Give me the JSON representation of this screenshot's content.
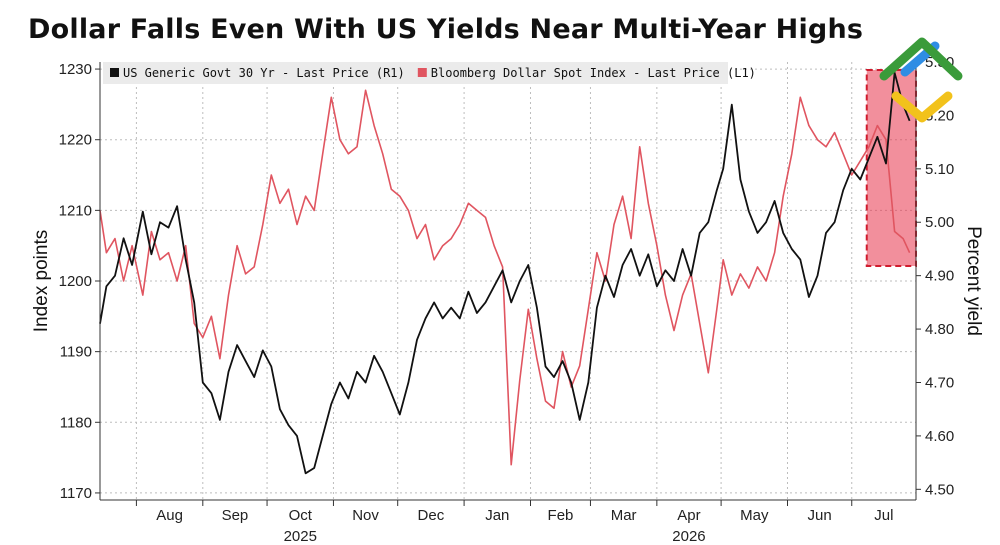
{
  "chart_data": {
    "type": "line",
    "title": "Dollar Falls Even With US Yields Near Multi-Year Highs",
    "left_axis": {
      "label": "Index points",
      "range": [
        1169,
        1231
      ],
      "ticks": [
        1170,
        1180,
        1190,
        1200,
        1210,
        1220,
        1230
      ]
    },
    "right_axis": {
      "label": "Percent yield",
      "range": [
        4.48,
        5.3
      ],
      "ticks": [
        4.5,
        4.6,
        4.7,
        4.8,
        4.9,
        5.0,
        5.1,
        5.2,
        5.3
      ],
      "tick_labels": [
        "4.50",
        "4.60",
        "4.70",
        "4.80",
        "4.90",
        "5.00",
        "5.10",
        "5.20",
        "5.30"
      ]
    },
    "x_axis": {
      "range": [
        "2025-07-15",
        "2026-07-31"
      ],
      "months": [
        {
          "label": "Aug",
          "date": "2025-08-01",
          "year": "2025"
        },
        {
          "label": "Sep",
          "date": "2025-09-01"
        },
        {
          "label": "Oct",
          "date": "2025-10-01",
          "year": "2025"
        },
        {
          "label": "Nov",
          "date": "2025-11-01"
        },
        {
          "label": "Dec",
          "date": "2025-12-01"
        },
        {
          "label": "Jan",
          "date": "2026-01-01"
        },
        {
          "label": "Feb",
          "date": "2026-02-01"
        },
        {
          "label": "Mar",
          "date": "2026-03-01"
        },
        {
          "label": "Apr",
          "date": "2026-04-01",
          "year": "2026"
        },
        {
          "label": "May",
          "date": "2026-05-01"
        },
        {
          "label": "Jun",
          "date": "2026-06-01"
        },
        {
          "label": "Jul",
          "date": "2026-07-01"
        }
      ],
      "year_labels": [
        {
          "label": "2025",
          "month": "Oct"
        },
        {
          "label": "2026",
          "month": "Apr"
        }
      ]
    },
    "legend": {
      "placement": "top-left"
    },
    "grid": true,
    "highlight": {
      "from": "2026-07-08",
      "to": "2026-07-31",
      "color": "#e8334a"
    },
    "series": [
      {
        "name": "US Generic Govt 30 Yr - Last Price (R1)",
        "axis": "right",
        "color": "#111111",
        "points": [
          [
            "2025-07-15",
            4.81
          ],
          [
            "2025-07-18",
            4.88
          ],
          [
            "2025-07-22",
            4.9
          ],
          [
            "2025-07-26",
            4.97
          ],
          [
            "2025-07-30",
            4.92
          ],
          [
            "2025-08-04",
            5.02
          ],
          [
            "2025-08-08",
            4.94
          ],
          [
            "2025-08-12",
            5.0
          ],
          [
            "2025-08-16",
            4.99
          ],
          [
            "2025-08-20",
            5.03
          ],
          [
            "2025-08-24",
            4.93
          ],
          [
            "2025-08-28",
            4.85
          ],
          [
            "2025-09-01",
            4.7
          ],
          [
            "2025-09-05",
            4.68
          ],
          [
            "2025-09-09",
            4.63
          ],
          [
            "2025-09-13",
            4.72
          ],
          [
            "2025-09-17",
            4.77
          ],
          [
            "2025-09-21",
            4.74
          ],
          [
            "2025-09-25",
            4.71
          ],
          [
            "2025-09-29",
            4.76
          ],
          [
            "2025-10-03",
            4.73
          ],
          [
            "2025-10-07",
            4.65
          ],
          [
            "2025-10-11",
            4.62
          ],
          [
            "2025-10-15",
            4.6
          ],
          [
            "2025-10-19",
            4.53
          ],
          [
            "2025-10-23",
            4.54
          ],
          [
            "2025-10-27",
            4.6
          ],
          [
            "2025-10-31",
            4.66
          ],
          [
            "2025-11-04",
            4.7
          ],
          [
            "2025-11-08",
            4.67
          ],
          [
            "2025-11-12",
            4.72
          ],
          [
            "2025-11-16",
            4.7
          ],
          [
            "2025-11-20",
            4.75
          ],
          [
            "2025-11-24",
            4.72
          ],
          [
            "2025-11-28",
            4.68
          ],
          [
            "2025-12-02",
            4.64
          ],
          [
            "2025-12-06",
            4.7
          ],
          [
            "2025-12-10",
            4.78
          ],
          [
            "2025-12-14",
            4.82
          ],
          [
            "2025-12-18",
            4.85
          ],
          [
            "2025-12-22",
            4.82
          ],
          [
            "2025-12-26",
            4.84
          ],
          [
            "2025-12-30",
            4.82
          ],
          [
            "2026-01-03",
            4.87
          ],
          [
            "2026-01-07",
            4.83
          ],
          [
            "2026-01-11",
            4.85
          ],
          [
            "2026-01-15",
            4.88
          ],
          [
            "2026-01-19",
            4.91
          ],
          [
            "2026-01-23",
            4.85
          ],
          [
            "2026-01-27",
            4.89
          ],
          [
            "2026-01-31",
            4.92
          ],
          [
            "2026-02-04",
            4.84
          ],
          [
            "2026-02-08",
            4.73
          ],
          [
            "2026-02-12",
            4.71
          ],
          [
            "2026-02-16",
            4.74
          ],
          [
            "2026-02-20",
            4.7
          ],
          [
            "2026-02-24",
            4.63
          ],
          [
            "2026-02-28",
            4.7
          ],
          [
            "2026-03-04",
            4.84
          ],
          [
            "2026-03-08",
            4.9
          ],
          [
            "2026-03-12",
            4.86
          ],
          [
            "2026-03-16",
            4.92
          ],
          [
            "2026-03-20",
            4.95
          ],
          [
            "2026-03-24",
            4.9
          ],
          [
            "2026-03-28",
            4.94
          ],
          [
            "2026-04-01",
            4.88
          ],
          [
            "2026-04-05",
            4.91
          ],
          [
            "2026-04-09",
            4.89
          ],
          [
            "2026-04-13",
            4.95
          ],
          [
            "2026-04-17",
            4.9
          ],
          [
            "2026-04-21",
            4.98
          ],
          [
            "2026-04-25",
            5.0
          ],
          [
            "2026-04-29",
            5.06
          ],
          [
            "2026-05-02",
            5.1
          ],
          [
            "2026-05-06",
            5.22
          ],
          [
            "2026-05-10",
            5.08
          ],
          [
            "2026-05-14",
            5.02
          ],
          [
            "2026-05-18",
            4.98
          ],
          [
            "2026-05-22",
            5.0
          ],
          [
            "2026-05-26",
            5.04
          ],
          [
            "2026-05-30",
            4.98
          ],
          [
            "2026-06-03",
            4.95
          ],
          [
            "2026-06-07",
            4.93
          ],
          [
            "2026-06-11",
            4.86
          ],
          [
            "2026-06-15",
            4.9
          ],
          [
            "2026-06-19",
            4.98
          ],
          [
            "2026-06-23",
            5.0
          ],
          [
            "2026-06-27",
            5.06
          ],
          [
            "2026-07-01",
            5.1
          ],
          [
            "2026-07-05",
            5.08
          ],
          [
            "2026-07-09",
            5.12
          ],
          [
            "2026-07-13",
            5.16
          ],
          [
            "2026-07-17",
            5.11
          ],
          [
            "2026-07-21",
            5.28
          ],
          [
            "2026-07-25",
            5.22
          ],
          [
            "2026-07-28",
            5.19
          ]
        ]
      },
      {
        "name": "Bloomberg Dollar Spot Index - Last Price (L1)",
        "axis": "left",
        "color": "#e05560",
        "points": [
          [
            "2025-07-15",
            1210
          ],
          [
            "2025-07-18",
            1204
          ],
          [
            "2025-07-22",
            1206
          ],
          [
            "2025-07-26",
            1200
          ],
          [
            "2025-07-30",
            1205
          ],
          [
            "2025-08-04",
            1198
          ],
          [
            "2025-08-08",
            1207
          ],
          [
            "2025-08-12",
            1203
          ],
          [
            "2025-08-16",
            1204
          ],
          [
            "2025-08-20",
            1200
          ],
          [
            "2025-08-24",
            1205
          ],
          [
            "2025-08-28",
            1194
          ],
          [
            "2025-09-01",
            1192
          ],
          [
            "2025-09-05",
            1195
          ],
          [
            "2025-09-09",
            1189
          ],
          [
            "2025-09-13",
            1198
          ],
          [
            "2025-09-17",
            1205
          ],
          [
            "2025-09-21",
            1201
          ],
          [
            "2025-09-25",
            1202
          ],
          [
            "2025-09-29",
            1208
          ],
          [
            "2025-10-03",
            1215
          ],
          [
            "2025-10-07",
            1211
          ],
          [
            "2025-10-11",
            1213
          ],
          [
            "2025-10-15",
            1208
          ],
          [
            "2025-10-19",
            1212
          ],
          [
            "2025-10-23",
            1210
          ],
          [
            "2025-10-27",
            1218
          ],
          [
            "2025-10-31",
            1226
          ],
          [
            "2025-11-04",
            1220
          ],
          [
            "2025-11-08",
            1218
          ],
          [
            "2025-11-12",
            1219
          ],
          [
            "2025-11-16",
            1227
          ],
          [
            "2025-11-20",
            1222
          ],
          [
            "2025-11-24",
            1218
          ],
          [
            "2025-11-28",
            1213
          ],
          [
            "2025-12-02",
            1212
          ],
          [
            "2025-12-06",
            1210
          ],
          [
            "2025-12-10",
            1206
          ],
          [
            "2025-12-14",
            1208
          ],
          [
            "2025-12-18",
            1203
          ],
          [
            "2025-12-22",
            1205
          ],
          [
            "2025-12-26",
            1206
          ],
          [
            "2025-12-30",
            1208
          ],
          [
            "2026-01-03",
            1211
          ],
          [
            "2026-01-07",
            1210
          ],
          [
            "2026-01-11",
            1209
          ],
          [
            "2026-01-15",
            1205
          ],
          [
            "2026-01-19",
            1202
          ],
          [
            "2026-01-23",
            1174
          ],
          [
            "2026-01-27",
            1186
          ],
          [
            "2026-01-31",
            1196
          ],
          [
            "2026-02-04",
            1189
          ],
          [
            "2026-02-08",
            1183
          ],
          [
            "2026-02-12",
            1182
          ],
          [
            "2026-02-16",
            1190
          ],
          [
            "2026-02-20",
            1185
          ],
          [
            "2026-02-24",
            1188
          ],
          [
            "2026-02-28",
            1196
          ],
          [
            "2026-03-04",
            1204
          ],
          [
            "2026-03-08",
            1200
          ],
          [
            "2026-03-12",
            1208
          ],
          [
            "2026-03-16",
            1212
          ],
          [
            "2026-03-20",
            1206
          ],
          [
            "2026-03-24",
            1219
          ],
          [
            "2026-03-28",
            1211
          ],
          [
            "2026-04-01",
            1205
          ],
          [
            "2026-04-05",
            1198
          ],
          [
            "2026-04-09",
            1193
          ],
          [
            "2026-04-13",
            1198
          ],
          [
            "2026-04-17",
            1201
          ],
          [
            "2026-04-21",
            1194
          ],
          [
            "2026-04-25",
            1187
          ],
          [
            "2026-04-29",
            1196
          ],
          [
            "2026-05-02",
            1203
          ],
          [
            "2026-05-06",
            1198
          ],
          [
            "2026-05-10",
            1201
          ],
          [
            "2026-05-14",
            1199
          ],
          [
            "2026-05-18",
            1202
          ],
          [
            "2026-05-22",
            1200
          ],
          [
            "2026-05-26",
            1204
          ],
          [
            "2026-05-30",
            1212
          ],
          [
            "2026-06-03",
            1218
          ],
          [
            "2026-06-07",
            1226
          ],
          [
            "2026-06-11",
            1222
          ],
          [
            "2026-06-15",
            1220
          ],
          [
            "2026-06-19",
            1219
          ],
          [
            "2026-06-23",
            1221
          ],
          [
            "2026-06-27",
            1218
          ],
          [
            "2026-07-01",
            1215
          ],
          [
            "2026-07-05",
            1217
          ],
          [
            "2026-07-09",
            1219
          ],
          [
            "2026-07-13",
            1222
          ],
          [
            "2026-07-17",
            1220
          ],
          [
            "2026-07-21",
            1207
          ],
          [
            "2026-07-25",
            1206
          ],
          [
            "2026-07-28",
            1204
          ]
        ]
      }
    ]
  }
}
